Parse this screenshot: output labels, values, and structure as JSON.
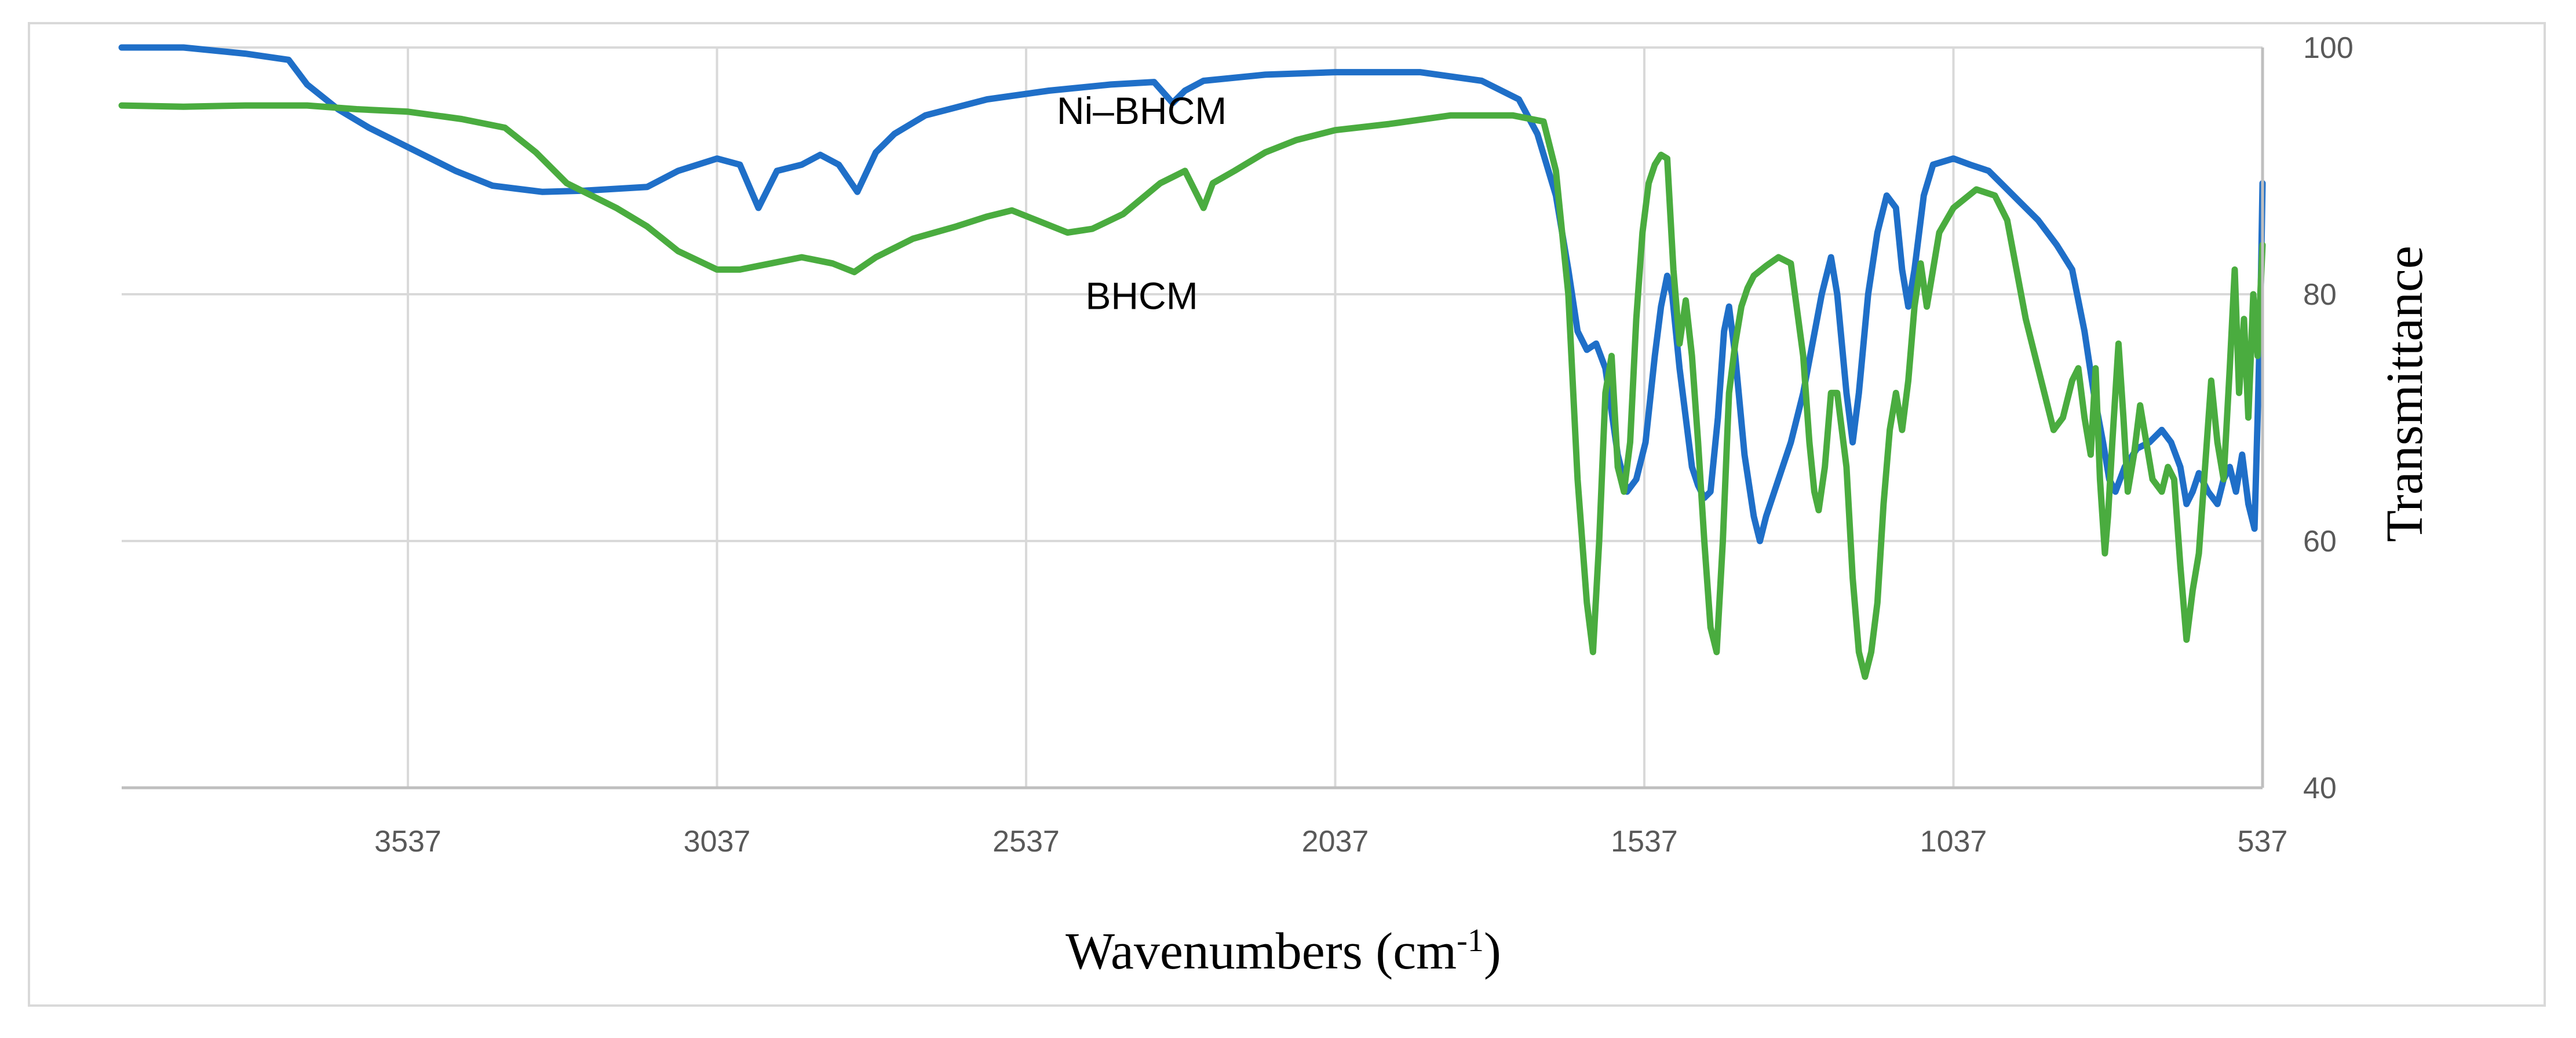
{
  "chart_data": {
    "type": "line",
    "xlabel": "Wavenumbers (cm",
    "xlabel_sup": "-1",
    "xlabel_end": ")",
    "ylabel": "Transmittance",
    "xlim": [
      4000,
      537
    ],
    "ylim": [
      40,
      100
    ],
    "x_ticks": [
      3537,
      3037,
      2537,
      2037,
      1537,
      1037,
      537
    ],
    "y_ticks": [
      40,
      60,
      80,
      100
    ],
    "y_axis_side": "right",
    "grid": true,
    "series": [
      {
        "name": "Ni–BHCM",
        "color": "#1f6fc8",
        "points": [
          [
            4000,
            100
          ],
          [
            3900,
            100
          ],
          [
            3800,
            99.5
          ],
          [
            3730,
            99
          ],
          [
            3700,
            97
          ],
          [
            3650,
            95
          ],
          [
            3600,
            93.5
          ],
          [
            3540,
            92
          ],
          [
            3460,
            90
          ],
          [
            3400,
            88.8
          ],
          [
            3320,
            88.3
          ],
          [
            3250,
            88.4
          ],
          [
            3150,
            88.7
          ],
          [
            3100,
            90
          ],
          [
            3037,
            91
          ],
          [
            3000,
            90.5
          ],
          [
            2970,
            87
          ],
          [
            2940,
            90
          ],
          [
            2900,
            90.5
          ],
          [
            2870,
            91.3
          ],
          [
            2840,
            90.5
          ],
          [
            2810,
            88.3
          ],
          [
            2780,
            91.5
          ],
          [
            2750,
            93
          ],
          [
            2700,
            94.5
          ],
          [
            2600,
            95.8
          ],
          [
            2500,
            96.5
          ],
          [
            2400,
            97
          ],
          [
            2330,
            97.2
          ],
          [
            2300,
            95.5
          ],
          [
            2280,
            96.5
          ],
          [
            2250,
            97.3
          ],
          [
            2150,
            97.8
          ],
          [
            2037,
            98
          ],
          [
            1900,
            98
          ],
          [
            1800,
            97.3
          ],
          [
            1740,
            95.8
          ],
          [
            1710,
            93
          ],
          [
            1680,
            88
          ],
          [
            1660,
            82
          ],
          [
            1645,
            77
          ],
          [
            1630,
            75.5
          ],
          [
            1615,
            76
          ],
          [
            1600,
            74
          ],
          [
            1580,
            67
          ],
          [
            1565,
            64
          ],
          [
            1550,
            65
          ],
          [
            1535,
            68
          ],
          [
            1520,
            75
          ],
          [
            1510,
            79
          ],
          [
            1500,
            81.5
          ],
          [
            1492,
            80
          ],
          [
            1480,
            74
          ],
          [
            1470,
            70
          ],
          [
            1460,
            66
          ],
          [
            1450,
            64.5
          ],
          [
            1440,
            63.5
          ],
          [
            1430,
            64
          ],
          [
            1418,
            70
          ],
          [
            1408,
            77
          ],
          [
            1400,
            79
          ],
          [
            1390,
            75
          ],
          [
            1375,
            67
          ],
          [
            1360,
            62
          ],
          [
            1350,
            60
          ],
          [
            1340,
            62
          ],
          [
            1320,
            65
          ],
          [
            1300,
            68
          ],
          [
            1280,
            72
          ],
          [
            1265,
            76
          ],
          [
            1250,
            80
          ],
          [
            1235,
            83
          ],
          [
            1225,
            80
          ],
          [
            1210,
            72
          ],
          [
            1200,
            68
          ],
          [
            1190,
            72
          ],
          [
            1175,
            80
          ],
          [
            1160,
            85
          ],
          [
            1145,
            88
          ],
          [
            1130,
            87
          ],
          [
            1120,
            82
          ],
          [
            1110,
            79
          ],
          [
            1100,
            82
          ],
          [
            1085,
            88
          ],
          [
            1070,
            90.5
          ],
          [
            1037,
            91
          ],
          [
            1010,
            90.5
          ],
          [
            980,
            90
          ],
          [
            960,
            89
          ],
          [
            930,
            87.5
          ],
          [
            900,
            86
          ],
          [
            870,
            84
          ],
          [
            845,
            82
          ],
          [
            825,
            77
          ],
          [
            810,
            72
          ],
          [
            795,
            68
          ],
          [
            785,
            65
          ],
          [
            775,
            64
          ],
          [
            760,
            66
          ],
          [
            740,
            67.5
          ],
          [
            720,
            68
          ],
          [
            700,
            69
          ],
          [
            685,
            68
          ],
          [
            670,
            66
          ],
          [
            660,
            63
          ],
          [
            650,
            64
          ],
          [
            640,
            65.5
          ],
          [
            625,
            64
          ],
          [
            610,
            63
          ],
          [
            600,
            65
          ],
          [
            590,
            66
          ],
          [
            580,
            64
          ],
          [
            570,
            67
          ],
          [
            560,
            63
          ],
          [
            550,
            61
          ],
          [
            545,
            70
          ],
          [
            540,
            80
          ],
          [
            537,
            89
          ]
        ]
      },
      {
        "name": "BHCM",
        "color": "#4aac3f",
        "points": [
          [
            4000,
            95.3
          ],
          [
            3900,
            95.2
          ],
          [
            3800,
            95.3
          ],
          [
            3700,
            95.3
          ],
          [
            3620,
            95
          ],
          [
            3537,
            94.8
          ],
          [
            3450,
            94.2
          ],
          [
            3380,
            93.5
          ],
          [
            3330,
            91.5
          ],
          [
            3280,
            89
          ],
          [
            3200,
            87
          ],
          [
            3150,
            85.5
          ],
          [
            3100,
            83.5
          ],
          [
            3037,
            82
          ],
          [
            3000,
            82
          ],
          [
            2950,
            82.5
          ],
          [
            2900,
            83
          ],
          [
            2850,
            82.5
          ],
          [
            2815,
            81.8
          ],
          [
            2780,
            83
          ],
          [
            2720,
            84.5
          ],
          [
            2650,
            85.5
          ],
          [
            2600,
            86.3
          ],
          [
            2560,
            86.8
          ],
          [
            2520,
            86
          ],
          [
            2470,
            85
          ],
          [
            2430,
            85.3
          ],
          [
            2380,
            86.5
          ],
          [
            2320,
            89
          ],
          [
            2280,
            90
          ],
          [
            2260,
            88
          ],
          [
            2250,
            87
          ],
          [
            2235,
            89
          ],
          [
            2200,
            90
          ],
          [
            2150,
            91.5
          ],
          [
            2100,
            92.5
          ],
          [
            2037,
            93.3
          ],
          [
            1950,
            93.8
          ],
          [
            1850,
            94.5
          ],
          [
            1750,
            94.5
          ],
          [
            1700,
            94
          ],
          [
            1680,
            90
          ],
          [
            1660,
            80
          ],
          [
            1645,
            65
          ],
          [
            1630,
            55
          ],
          [
            1620,
            51
          ],
          [
            1610,
            60
          ],
          [
            1600,
            72
          ],
          [
            1590,
            75
          ],
          [
            1580,
            66
          ],
          [
            1570,
            64
          ],
          [
            1560,
            68
          ],
          [
            1550,
            78
          ],
          [
            1540,
            85
          ],
          [
            1530,
            89
          ],
          [
            1520,
            90.5
          ],
          [
            1510,
            91.3
          ],
          [
            1500,
            91
          ],
          [
            1490,
            82
          ],
          [
            1480,
            76
          ],
          [
            1470,
            79.5
          ],
          [
            1460,
            75
          ],
          [
            1450,
            68
          ],
          [
            1440,
            60
          ],
          [
            1430,
            53
          ],
          [
            1420,
            51
          ],
          [
            1410,
            60
          ],
          [
            1400,
            72
          ],
          [
            1390,
            76
          ],
          [
            1380,
            79
          ],
          [
            1370,
            80.5
          ],
          [
            1360,
            81.5
          ],
          [
            1340,
            82.3
          ],
          [
            1320,
            83
          ],
          [
            1300,
            82.5
          ],
          [
            1280,
            75
          ],
          [
            1270,
            68
          ],
          [
            1262,
            64
          ],
          [
            1255,
            62.5
          ],
          [
            1245,
            66
          ],
          [
            1235,
            72
          ],
          [
            1225,
            72
          ],
          [
            1210,
            66
          ],
          [
            1200,
            57
          ],
          [
            1190,
            51
          ],
          [
            1180,
            49
          ],
          [
            1170,
            51
          ],
          [
            1160,
            55
          ],
          [
            1150,
            63
          ],
          [
            1140,
            69
          ],
          [
            1130,
            72
          ],
          [
            1120,
            69
          ],
          [
            1110,
            73
          ],
          [
            1100,
            79
          ],
          [
            1090,
            82.5
          ],
          [
            1080,
            79
          ],
          [
            1070,
            82
          ],
          [
            1060,
            85
          ],
          [
            1037,
            87
          ],
          [
            1000,
            88.5
          ],
          [
            970,
            88
          ],
          [
            950,
            86
          ],
          [
            935,
            82
          ],
          [
            920,
            78
          ],
          [
            905,
            75
          ],
          [
            890,
            72
          ],
          [
            875,
            69
          ],
          [
            860,
            70
          ],
          [
            845,
            73
          ],
          [
            835,
            74
          ],
          [
            825,
            70
          ],
          [
            815,
            67
          ],
          [
            807,
            74
          ],
          [
            800,
            65
          ],
          [
            792,
            59
          ],
          [
            787,
            62
          ],
          [
            780,
            68
          ],
          [
            770,
            76
          ],
          [
            762,
            70
          ],
          [
            755,
            64
          ],
          [
            745,
            67
          ],
          [
            735,
            71
          ],
          [
            725,
            68
          ],
          [
            715,
            65
          ],
          [
            700,
            64
          ],
          [
            690,
            66
          ],
          [
            680,
            65
          ],
          [
            670,
            58
          ],
          [
            660,
            52
          ],
          [
            650,
            56
          ],
          [
            640,
            59
          ],
          [
            630,
            66
          ],
          [
            620,
            73
          ],
          [
            610,
            68
          ],
          [
            600,
            65
          ],
          [
            590,
            74
          ],
          [
            582,
            82
          ],
          [
            575,
            72
          ],
          [
            567,
            78
          ],
          [
            560,
            70
          ],
          [
            552,
            80
          ],
          [
            545,
            75
          ],
          [
            537,
            84
          ]
        ]
      }
    ],
    "annotations": [
      {
        "text": "Ni–BHCM",
        "x": 2350,
        "y": 93.8
      },
      {
        "text": "BHCM",
        "x": 2350,
        "y": 78.8
      }
    ]
  }
}
